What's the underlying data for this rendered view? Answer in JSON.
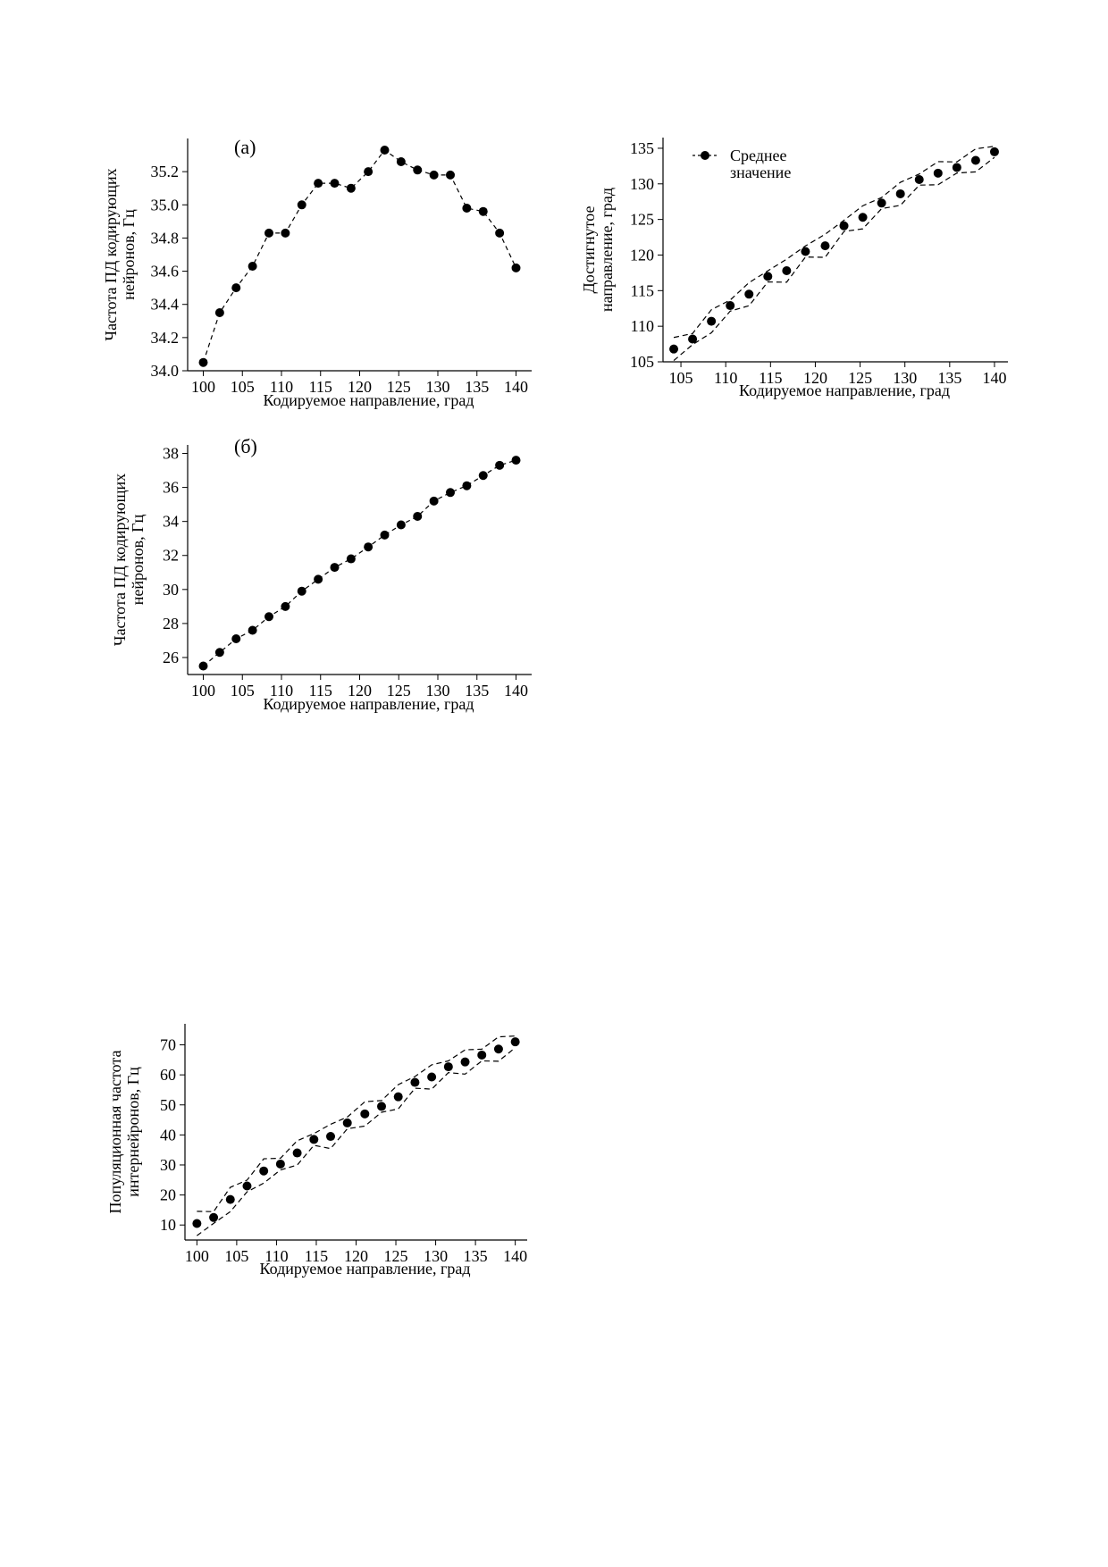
{
  "chart_data": [
    {
      "id": "a",
      "type": "line",
      "panel_label": "(а)",
      "xlabel": "Кодируемое направление, град",
      "ylabel": [
        "Частота ПД кодирующих",
        "нейронов, Гц"
      ],
      "xlim": [
        98,
        142
      ],
      "ylim": [
        34.0,
        35.4
      ],
      "xticks": [
        100,
        105,
        110,
        115,
        120,
        125,
        130,
        135,
        140
      ],
      "yticks": [
        34.0,
        34.2,
        34.4,
        34.6,
        34.8,
        35.0,
        35.2
      ],
      "ytick_decimals": 1,
      "line_style": "dashed",
      "series": [
        {
          "x": [
            100,
            102.1,
            104.2,
            106.3,
            108.4,
            110.5,
            112.6,
            114.7,
            116.8,
            118.9,
            121.1,
            123.2,
            125.3,
            127.4,
            129.5,
            131.6,
            133.7,
            135.8,
            137.9,
            140
          ],
          "y": [
            34.05,
            34.35,
            34.5,
            34.63,
            34.83,
            34.83,
            35.0,
            35.13,
            35.13,
            35.1,
            35.2,
            35.33,
            35.26,
            35.21,
            35.18,
            35.18,
            34.98,
            34.96,
            34.83,
            34.62
          ]
        }
      ]
    },
    {
      "id": "b",
      "type": "line",
      "panel_label": "(б)",
      "xlabel": "Кодируемое направление, град",
      "ylabel": [
        "Частота ПД кодирующих",
        "нейронов, Гц"
      ],
      "xlim": [
        98,
        142
      ],
      "ylim": [
        25,
        38.5
      ],
      "xticks": [
        100,
        105,
        110,
        115,
        120,
        125,
        130,
        135,
        140
      ],
      "yticks": [
        26,
        28,
        30,
        32,
        34,
        36,
        38
      ],
      "ytick_decimals": 0,
      "line_style": "dashed",
      "series": [
        {
          "x": [
            100,
            102.1,
            104.2,
            106.3,
            108.4,
            110.5,
            112.6,
            114.7,
            116.8,
            118.9,
            121.1,
            123.2,
            125.3,
            127.4,
            129.5,
            131.6,
            133.7,
            135.8,
            137.9,
            140
          ],
          "y": [
            25.5,
            26.3,
            27.1,
            27.6,
            28.4,
            29.0,
            29.9,
            30.6,
            31.3,
            31.8,
            32.5,
            33.2,
            33.8,
            34.3,
            35.2,
            35.7,
            36.1,
            36.7,
            37.3,
            37.6
          ]
        }
      ]
    },
    {
      "id": "c",
      "type": "line",
      "panel_label": "",
      "xlabel": "Кодируемое направление, град",
      "ylabel": [
        "Достигнутое",
        "направление, град"
      ],
      "xlim": [
        103,
        141.5
      ],
      "ylim": [
        105,
        136.5
      ],
      "xticks": [
        105,
        110,
        115,
        120,
        125,
        130,
        135,
        140
      ],
      "yticks": [
        105,
        110,
        115,
        120,
        125,
        130,
        135
      ],
      "ytick_decimals": 0,
      "legend": {
        "label": [
          "Среднее",
          "значение"
        ],
        "position": "top-left"
      },
      "band_halfwidth": 1.2,
      "series": [
        {
          "name": "Среднее значение",
          "x": [
            104.2,
            106.3,
            108.4,
            110.5,
            112.6,
            114.7,
            116.8,
            118.9,
            121.1,
            123.2,
            125.3,
            127.4,
            129.5,
            131.6,
            133.7,
            135.8,
            137.9,
            140
          ],
          "y": [
            106.8,
            108.2,
            110.7,
            112.9,
            114.5,
            117.0,
            117.8,
            120.5,
            121.3,
            124.1,
            125.3,
            127.3,
            128.6,
            130.6,
            131.5,
            132.3,
            133.3,
            134.5
          ]
        }
      ]
    },
    {
      "id": "d",
      "type": "line",
      "panel_label": "",
      "xlabel": "Кодируемое направление, град",
      "ylabel": [
        "Популяционная частота",
        "интернейронов, Гц"
      ],
      "xlim": [
        98.5,
        141.5
      ],
      "ylim": [
        5,
        77
      ],
      "xticks": [
        100,
        105,
        110,
        115,
        120,
        125,
        130,
        135,
        140
      ],
      "yticks": [
        10,
        20,
        30,
        40,
        50,
        60,
        70
      ],
      "ytick_decimals": 0,
      "band_halfwidth": 3,
      "series": [
        {
          "x": [
            100,
            102.1,
            104.2,
            106.3,
            108.4,
            110.5,
            112.6,
            114.7,
            116.8,
            118.9,
            121.1,
            123.2,
            125.3,
            127.4,
            129.5,
            131.6,
            133.7,
            135.8,
            137.9,
            140
          ],
          "y": [
            10.5,
            12.5,
            18.5,
            23.0,
            28.0,
            30.3,
            34.0,
            38.5,
            39.5,
            44.0,
            47.0,
            49.5,
            52.7,
            57.5,
            59.3,
            62.7,
            64.3,
            66.6,
            68.6,
            71.0
          ]
        }
      ]
    }
  ]
}
